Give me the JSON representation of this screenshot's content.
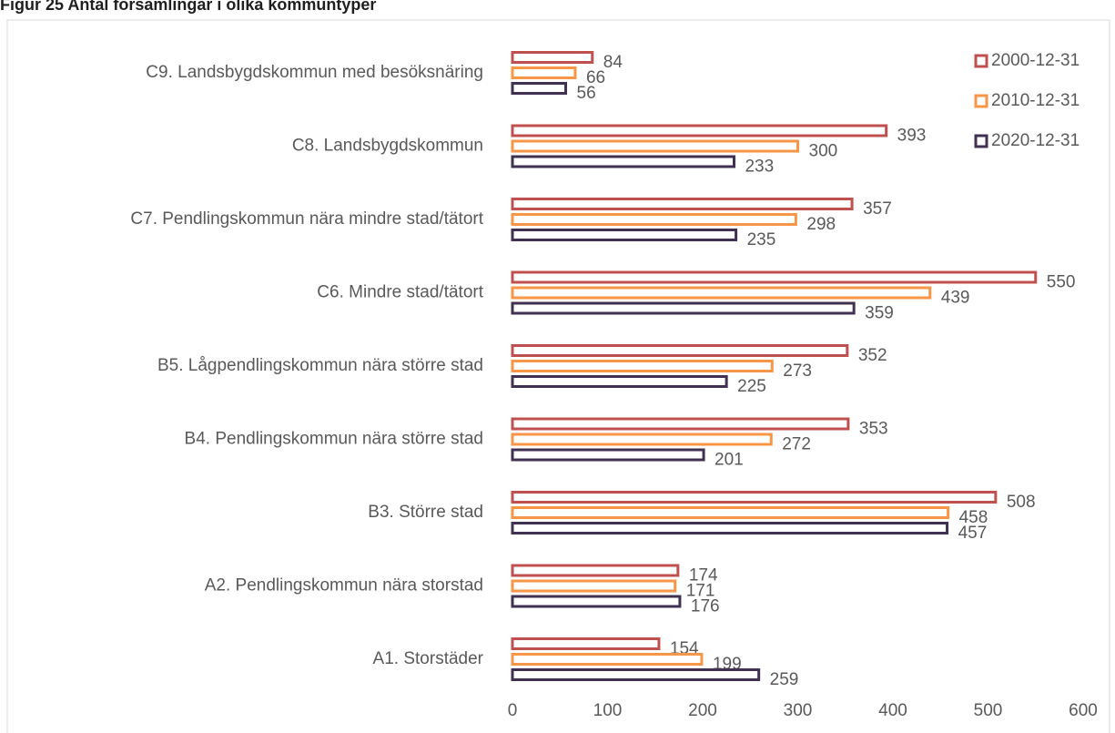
{
  "chart_data": {
    "type": "bar",
    "orientation": "horizontal",
    "title": "Figur 25 Antal församlingar i olika kommuntyper",
    "categories": [
      "A1. Storstäder",
      "A2. Pendlingskommun nära storstad",
      "B3. Större stad",
      "B4. Pendlingskommun nära större stad",
      "B5. Lågpendlingskommun nära större stad",
      "C6. Mindre stad/tätort",
      "C7. Pendlingskommun nära mindre stad/tätort",
      "C8. Landsbygdskommun",
      "C9. Landsbygdskommun med besöksnäring"
    ],
    "series": [
      {
        "name": "2000-12-31",
        "color": "#c0504d",
        "values": [
          154,
          174,
          508,
          353,
          352,
          550,
          357,
          393,
          84
        ]
      },
      {
        "name": "2010-12-31",
        "color": "#f79646",
        "values": [
          199,
          171,
          458,
          272,
          273,
          439,
          298,
          300,
          66
        ]
      },
      {
        "name": "2020-12-31",
        "color": "#403152",
        "values": [
          259,
          176,
          457,
          201,
          225,
          359,
          235,
          233,
          56
        ]
      }
    ],
    "xlim": [
      0,
      600
    ],
    "xticks": [
      0,
      100,
      200,
      300,
      400,
      500,
      600
    ],
    "grid": false,
    "legend": "top-right"
  }
}
